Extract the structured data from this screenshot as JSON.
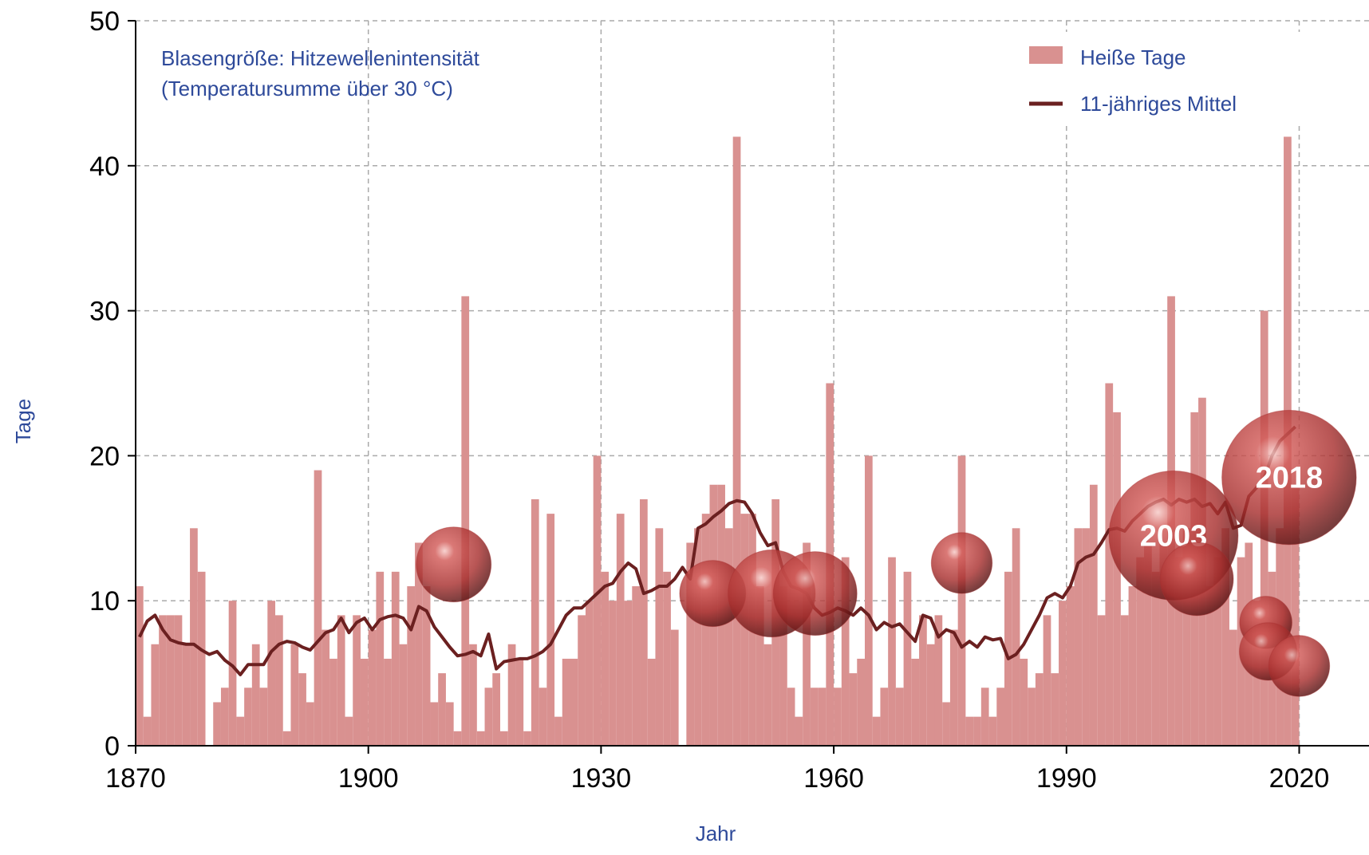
{
  "chart_data": {
    "type": "bar",
    "x_label": "Jahr",
    "y_label": "Tage",
    "annotations": [
      "Blasengröße: Hitzewellenintensität",
      "(Temperatursumme über 30 °C)"
    ],
    "xlim": [
      1870,
      2029
    ],
    "ylim": [
      0,
      50
    ],
    "xticks": [
      1870,
      1900,
      1930,
      1960,
      1990,
      2020
    ],
    "yticks": [
      0,
      10,
      20,
      30,
      40,
      50
    ],
    "grid": true,
    "legend": "upper right",
    "x": [
      1870,
      1871,
      1872,
      1873,
      1874,
      1875,
      1876,
      1877,
      1878,
      1879,
      1880,
      1881,
      1882,
      1883,
      1884,
      1885,
      1886,
      1887,
      1888,
      1889,
      1890,
      1891,
      1892,
      1893,
      1894,
      1895,
      1896,
      1897,
      1898,
      1899,
      1900,
      1901,
      1902,
      1903,
      1904,
      1905,
      1906,
      1907,
      1908,
      1909,
      1910,
      1911,
      1912,
      1913,
      1914,
      1915,
      1916,
      1917,
      1918,
      1919,
      1920,
      1921,
      1922,
      1923,
      1924,
      1925,
      1926,
      1927,
      1928,
      1929,
      1930,
      1931,
      1932,
      1933,
      1934,
      1935,
      1936,
      1937,
      1938,
      1939,
      1940,
      1941,
      1942,
      1943,
      1944,
      1945,
      1946,
      1947,
      1948,
      1949,
      1950,
      1951,
      1952,
      1953,
      1954,
      1955,
      1956,
      1957,
      1958,
      1959,
      1960,
      1961,
      1962,
      1963,
      1964,
      1965,
      1966,
      1967,
      1968,
      1969,
      1970,
      1971,
      1972,
      1973,
      1974,
      1975,
      1976,
      1977,
      1978,
      1979,
      1980,
      1981,
      1982,
      1983,
      1984,
      1985,
      1986,
      1987,
      1988,
      1989,
      1990,
      1991,
      1992,
      1993,
      1994,
      1995,
      1996,
      1997,
      1998,
      1999,
      2000,
      2001,
      2002,
      2003,
      2004,
      2005,
      2006,
      2007,
      2008,
      2009,
      2010,
      2011,
      2012,
      2013,
      2014,
      2015,
      2016,
      2017,
      2018,
      2019
    ],
    "series": [
      {
        "name": "Heiße Tage",
        "type": "bar",
        "color": "#d99190",
        "values": [
          11,
          2,
          7,
          9,
          9,
          9,
          7,
          15,
          12,
          0,
          3,
          4,
          10,
          2,
          4,
          7,
          4,
          10,
          9,
          1,
          7,
          5,
          3,
          19,
          8,
          6,
          9,
          2,
          9,
          6,
          8,
          12,
          6,
          12,
          7,
          11,
          14,
          11,
          3,
          5,
          3,
          1,
          31,
          7,
          1,
          4,
          5,
          1,
          7,
          6,
          1,
          17,
          4,
          16,
          2,
          6,
          6,
          9,
          10,
          20,
          12,
          10,
          16,
          10,
          11,
          17,
          6,
          15,
          12,
          8,
          0,
          14,
          15,
          16,
          18,
          18,
          15,
          42,
          16,
          16,
          11,
          7,
          17,
          11,
          4,
          2,
          14,
          4,
          4,
          25,
          4,
          13,
          5,
          6,
          20,
          2,
          4,
          13,
          4,
          12,
          6,
          9,
          7,
          9,
          3,
          8,
          20,
          2,
          2,
          4,
          2,
          4,
          12,
          15,
          6,
          4,
          5,
          9,
          5,
          10,
          11,
          15,
          15,
          18,
          9,
          25,
          23,
          9,
          11,
          13,
          14,
          12,
          14,
          31,
          13,
          15,
          23,
          24,
          11,
          13,
          15,
          8,
          13,
          14,
          10,
          30,
          12,
          15,
          42,
          18
        ]
      },
      {
        "name": "11-jähriges Mittel",
        "type": "line",
        "color": "#6b2020",
        "values": [
          7.5,
          8.6,
          9.0,
          8.0,
          7.3,
          7.1,
          7.0,
          7.0,
          6.6,
          6.3,
          6.5,
          5.9,
          5.5,
          4.9,
          5.6,
          5.6,
          5.6,
          6.5,
          7.0,
          7.2,
          7.1,
          6.8,
          6.6,
          7.2,
          7.8,
          8.0,
          8.8,
          7.8,
          8.5,
          8.8,
          8.0,
          8.7,
          8.9,
          9.0,
          8.8,
          8.0,
          9.6,
          9.3,
          8.2,
          7.5,
          6.8,
          6.2,
          6.3,
          6.5,
          6.2,
          7.7,
          5.3,
          5.8,
          5.9,
          6.0,
          6.0,
          6.2,
          6.5,
          7.0,
          8.0,
          9.0,
          9.5,
          9.5,
          10.0,
          10.5,
          11.0,
          11.2,
          12.0,
          12.6,
          12.2,
          10.5,
          10.7,
          11.0,
          11.0,
          11.5,
          12.3,
          11.5,
          15.0,
          15.3,
          15.8,
          16.2,
          16.7,
          16.9,
          16.8,
          16.0,
          14.7,
          13.8,
          14.0,
          12.0,
          11.0,
          10.8,
          10.5,
          9.5,
          9.0,
          9.2,
          9.5,
          9.3,
          9.0,
          9.5,
          9.0,
          8.0,
          8.5,
          8.2,
          8.4,
          7.8,
          7.2,
          9.0,
          8.8,
          7.5,
          8.0,
          7.8,
          6.8,
          7.2,
          6.8,
          7.5,
          7.3,
          7.4,
          6.0,
          6.3,
          7.0,
          8.0,
          9.0,
          10.2,
          10.5,
          10.2,
          11.0,
          12.6,
          13.0,
          13.2,
          14.0,
          14.9,
          15.0,
          14.8,
          15.5,
          16.0,
          16.5,
          16.8,
          17.0,
          16.6,
          17.0,
          16.8,
          17.0,
          16.5,
          16.7,
          16.0,
          16.8,
          15.0,
          15.2,
          17.2,
          17.8,
          18.5,
          20.0,
          21.0,
          21.5,
          22.0
        ]
      }
    ],
    "bubbles": {
      "color": "#a8302f",
      "x": [
        1911,
        1944.4,
        1952,
        1957.6,
        1976.5,
        2003.8,
        2006.8,
        2018.7,
        2015.7,
        2016,
        2020
      ],
      "values": [
        12.5,
        10.5,
        10.5,
        10.5,
        12.6,
        14.5,
        11.5,
        18.5,
        8.5,
        6.5,
        5.5
      ],
      "sizes": [
        185,
        144,
        250,
        230,
        122,
        548,
        176,
        593,
        90,
        109,
        122
      ],
      "labels": [
        null,
        null,
        null,
        null,
        null,
        "2003",
        null,
        "2018",
        null,
        null,
        null
      ]
    }
  }
}
